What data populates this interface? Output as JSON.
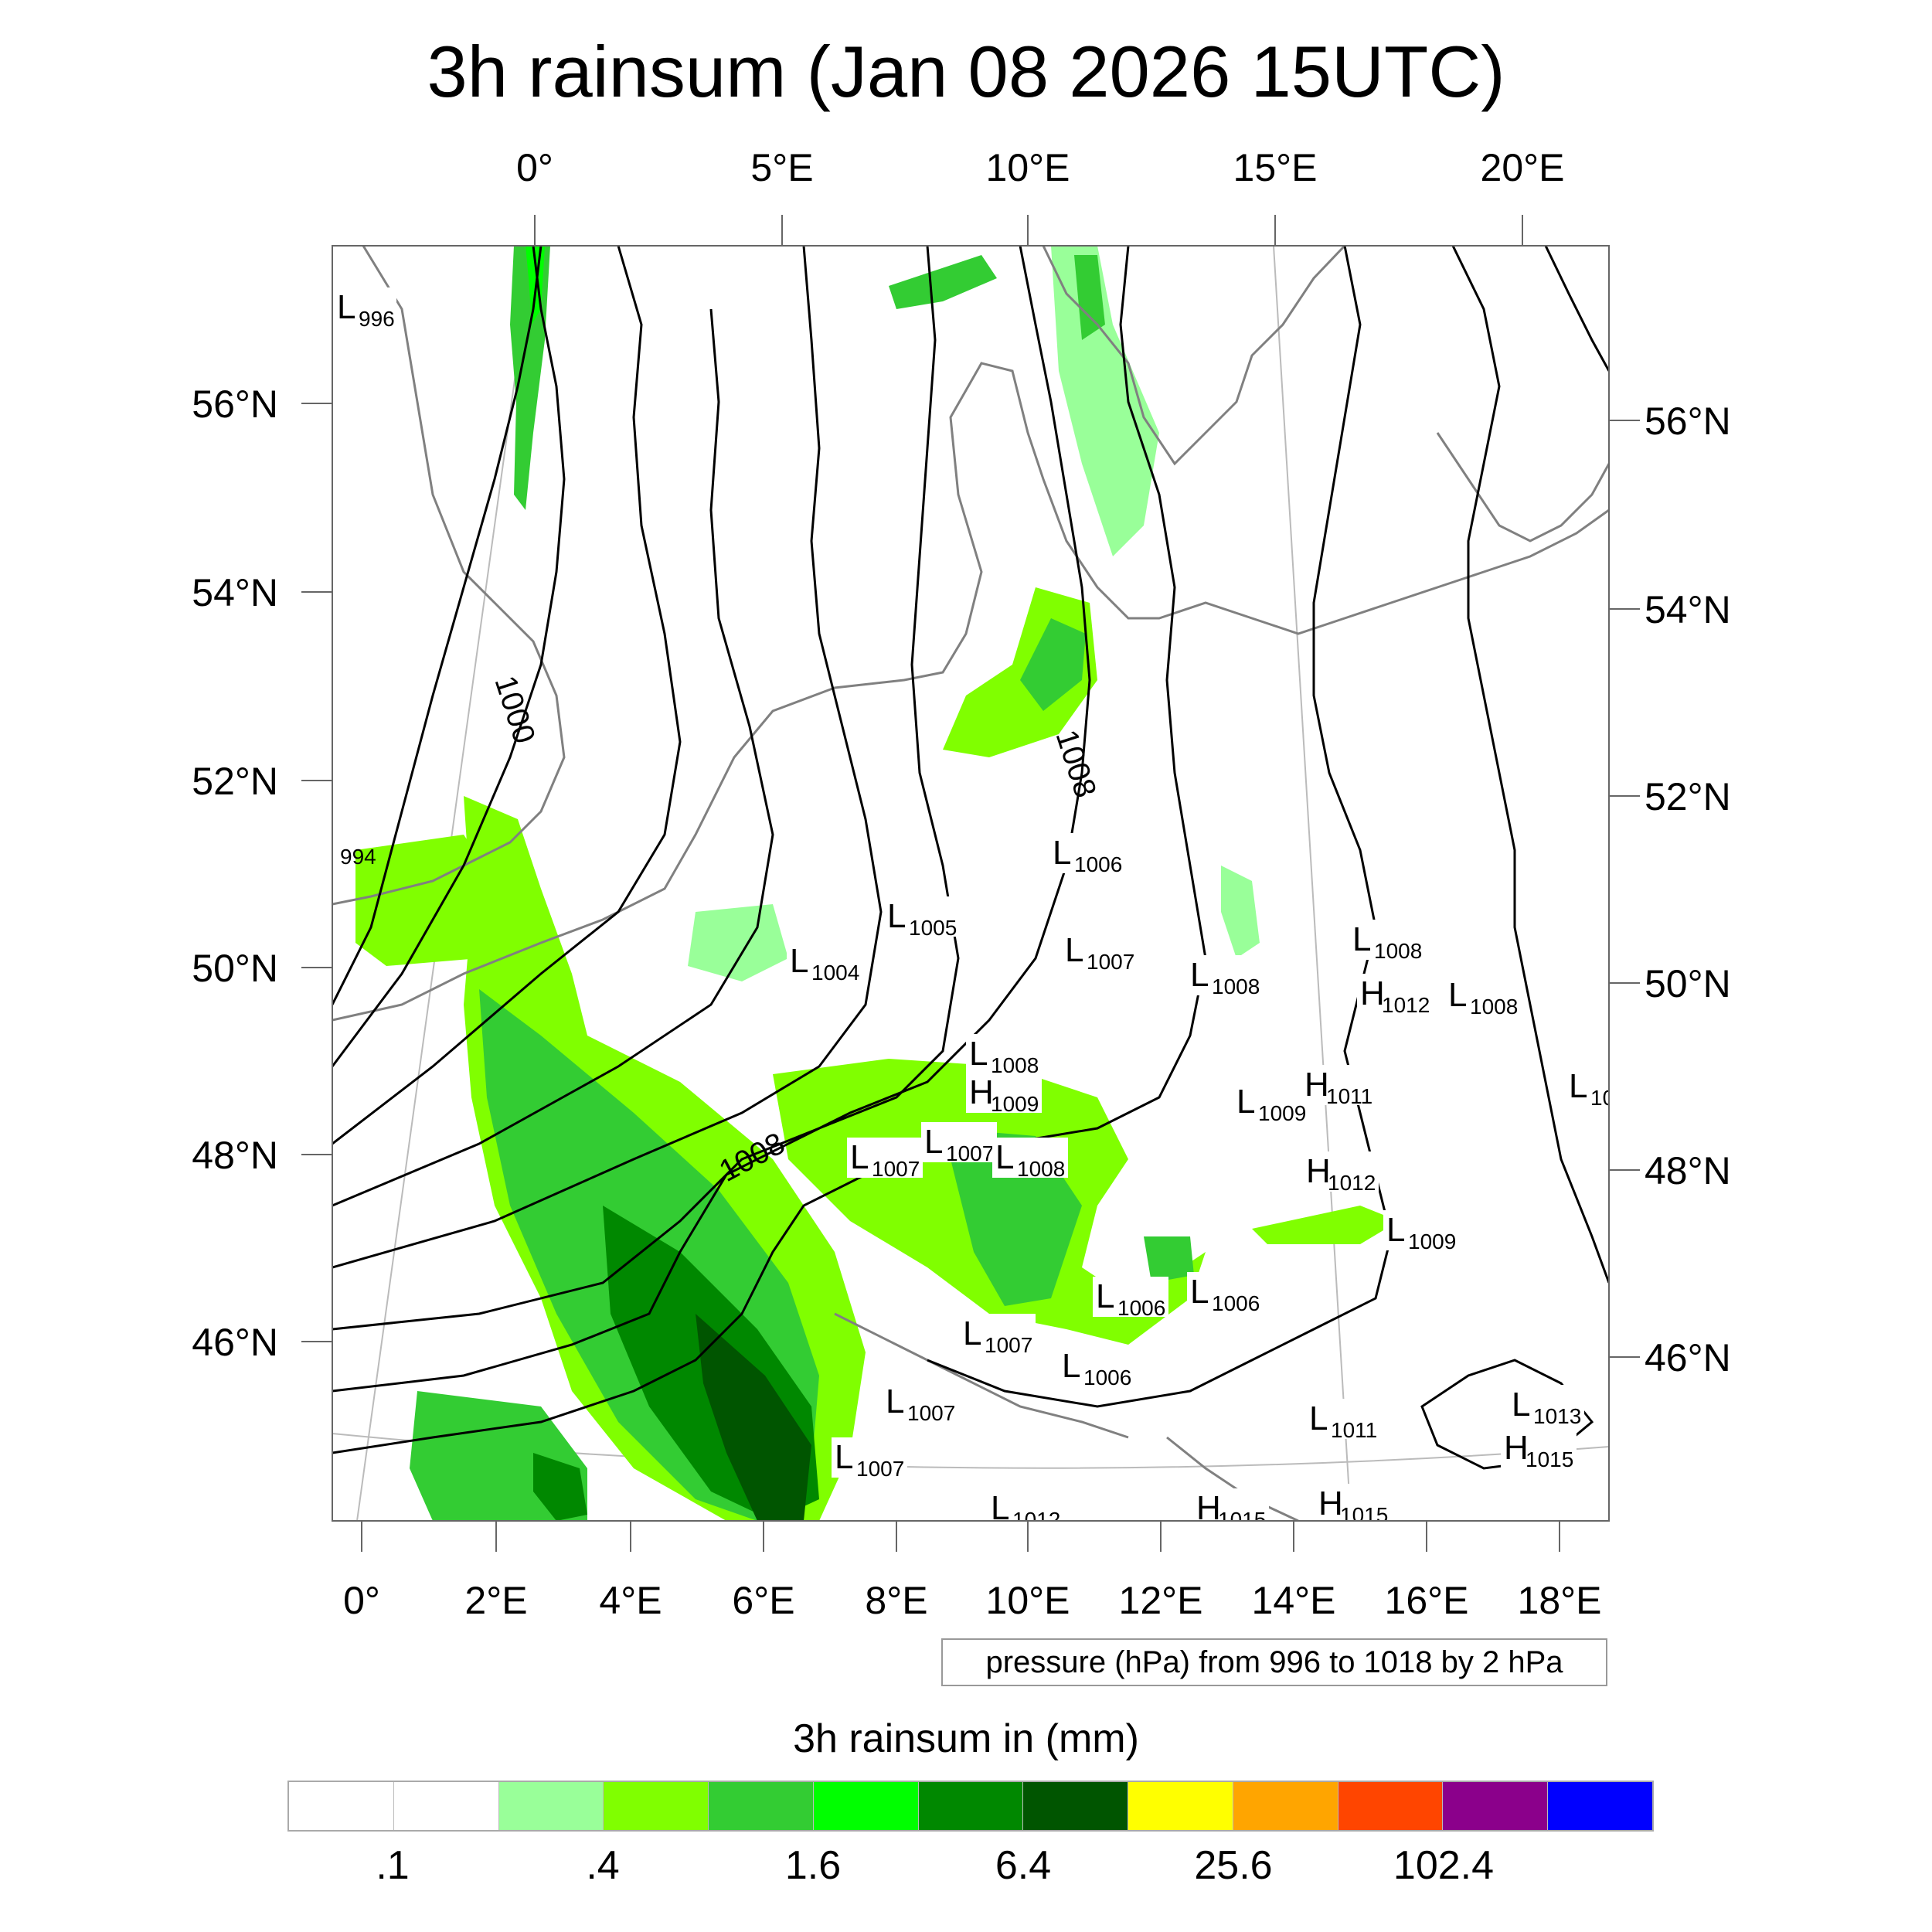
{
  "title": "3h rainsum (Jan 08 2026 15UTC)",
  "top_lon_labels": [
    "0°",
    "5°E",
    "10°E",
    "15°E",
    "20°E"
  ],
  "bottom_lon_labels": [
    "0°",
    "2°E",
    "4°E",
    "6°E",
    "8°E",
    "10°E",
    "12°E",
    "14°E",
    "16°E",
    "18°E"
  ],
  "left_lat_labels": [
    "56°N",
    "54°N",
    "52°N",
    "50°N",
    "48°N",
    "46°N"
  ],
  "right_lat_labels": [
    "56°N",
    "54°N",
    "52°N",
    "50°N",
    "48°N",
    "46°N"
  ],
  "isobar_labels": [
    "1000",
    "1008",
    "994"
  ],
  "pressure_centers": [
    {
      "letter": "L",
      "value": "996"
    },
    {
      "letter": "L",
      "value": "1006"
    },
    {
      "letter": "L",
      "value": "1005"
    },
    {
      "letter": "L",
      "value": "1004"
    },
    {
      "letter": "L",
      "value": "1007"
    },
    {
      "letter": "L",
      "value": "1008"
    },
    {
      "letter": "L",
      "value": "1008"
    },
    {
      "letter": "H",
      "value": "1012"
    },
    {
      "letter": "L",
      "value": "1008"
    },
    {
      "letter": "L",
      "value": "1008"
    },
    {
      "letter": "H",
      "value": "1009"
    },
    {
      "letter": "L",
      "value": "1009"
    },
    {
      "letter": "H",
      "value": "1011"
    },
    {
      "letter": "L",
      "value": "10"
    },
    {
      "letter": "L",
      "value": "1007"
    },
    {
      "letter": "L",
      "value": "1007"
    },
    {
      "letter": "L",
      "value": "1008"
    },
    {
      "letter": "H",
      "value": "1012"
    },
    {
      "letter": "L",
      "value": "1009"
    },
    {
      "letter": "L",
      "value": "1006"
    },
    {
      "letter": "L",
      "value": "1006"
    },
    {
      "letter": "L",
      "value": "1007"
    },
    {
      "letter": "L",
      "value": "1006"
    },
    {
      "letter": "L",
      "value": "1007"
    },
    {
      "letter": "L",
      "value": "1011"
    },
    {
      "letter": "L",
      "value": "1013"
    },
    {
      "letter": "H",
      "value": "1015"
    },
    {
      "letter": "L",
      "value": "1007"
    },
    {
      "letter": "L",
      "value": "1012"
    },
    {
      "letter": "H",
      "value": "1015"
    },
    {
      "letter": "H",
      "value": "1015"
    }
  ],
  "contour_info": "pressure (hPa) from 996 to 1018 by 2 hPa",
  "colorbar": {
    "title": "3h rainsum in (mm)",
    "colors": [
      "#ffffff",
      "#ffffff",
      "#99ff99",
      "#80ff00",
      "#33cc33",
      "#00ff00",
      "#008800",
      "#005500",
      "#ffff00",
      "#ffa500",
      "#ff4500",
      "#8b008b",
      "#0000ff"
    ],
    "tick_labels": [
      ".1",
      ".4",
      "1.6",
      "6.4",
      "25.6",
      "102.4"
    ]
  },
  "colors": {
    "coastline": "#808080",
    "isobar": "#000000"
  }
}
